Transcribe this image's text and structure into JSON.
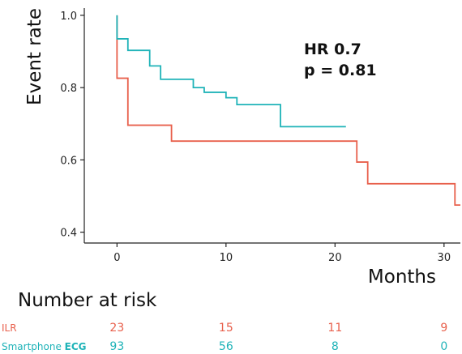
{
  "chart_data": {
    "type": "line",
    "step": true,
    "xlabel": "Months",
    "ylabel": "Event rate",
    "xlim": [
      -3,
      31.5
    ],
    "ylim": [
      0.37,
      1.02
    ],
    "xticks": [
      0,
      10,
      20,
      30
    ],
    "yticks": [
      0.4,
      0.6,
      0.8,
      1.0
    ],
    "ytick_labels": [
      "0.4",
      "0.6",
      "0.8",
      "1.0"
    ],
    "grid": false,
    "annotations": [
      "HR 0.7",
      "p = 0.81"
    ],
    "series": [
      {
        "name": "ILR",
        "color": "#e8604c",
        "x": [
          0,
          0,
          1,
          5,
          22,
          23,
          31,
          31.5
        ],
        "y": [
          1.0,
          0.826,
          0.696,
          0.652,
          0.594,
          0.534,
          0.475,
          0.475
        ]
      },
      {
        "name": "Smartphone ECG",
        "color": "#1fb3b8",
        "x": [
          0,
          0,
          1,
          3,
          4,
          7,
          8,
          10,
          11,
          15,
          21
        ],
        "y": [
          1.0,
          0.935,
          0.903,
          0.86,
          0.823,
          0.8,
          0.787,
          0.772,
          0.753,
          0.692,
          0.692
        ]
      }
    ]
  },
  "risk_table": {
    "title": "Number at risk",
    "rows": [
      {
        "prefix": "ILR",
        "bold": "",
        "color": "#e8604c",
        "values": [
          "23",
          "15",
          "11",
          "9"
        ]
      },
      {
        "prefix": "Smartphone ",
        "bold": "ECG",
        "color": "#1fb3b8",
        "values": [
          "93",
          "56",
          "8",
          "0"
        ]
      }
    ]
  }
}
